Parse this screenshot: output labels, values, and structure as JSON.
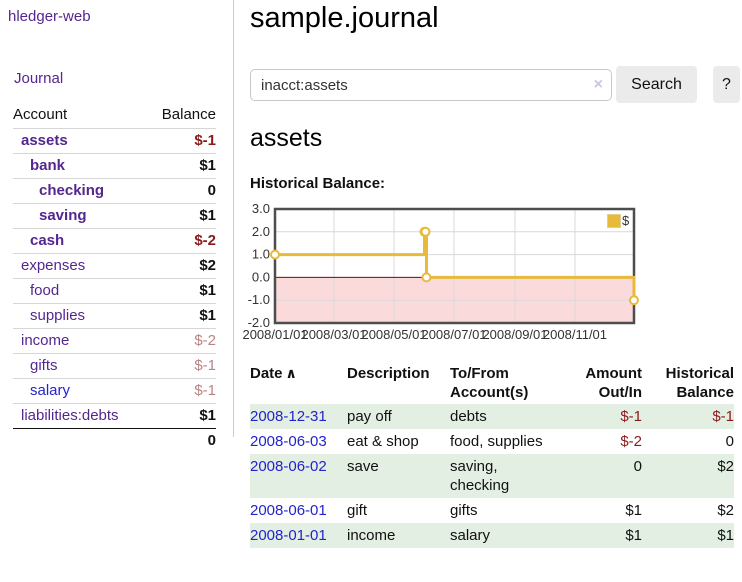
{
  "colors": {
    "purple": "#54278f",
    "blue": "#2323cc",
    "neg": "#8b1a1a",
    "negsoft": "#bb8383",
    "rowgreen": "#e3efe3",
    "gold": "#e8ba3a",
    "goldborder": "#e2cf8f",
    "pink": "#fadada",
    "grid": "#d9d9d9",
    "zeroline": "#8b0000",
    "chartborder": "#4d4d4d",
    "btnbg": "#ebebeb",
    "clear": "#cdc4e0"
  },
  "app": {
    "title": "hledger-web"
  },
  "sidebar": {
    "journal_label": "Journal",
    "account_col": "Account",
    "balance_col": "Balance",
    "accounts": [
      {
        "name": "assets",
        "balance": "$-1"
      },
      {
        "name": "bank",
        "balance": "$1"
      },
      {
        "name": "checking",
        "balance": "0"
      },
      {
        "name": "saving",
        "balance": "$1"
      },
      {
        "name": "cash",
        "balance": "$-2"
      },
      {
        "name": "expenses",
        "balance": "$2"
      },
      {
        "name": "food",
        "balance": "$1"
      },
      {
        "name": "supplies",
        "balance": "$1"
      },
      {
        "name": "income",
        "balance": "$-2"
      },
      {
        "name": "gifts",
        "balance": "$-1"
      },
      {
        "name": "salary",
        "balance": "$-1"
      },
      {
        "name": "liabilities:debts",
        "balance": "$1"
      }
    ],
    "total": "0"
  },
  "main": {
    "title": "sample.journal",
    "search": {
      "value": "inacct:assets",
      "clear_icon": "×",
      "button": "Search",
      "help": "?"
    },
    "heading": "assets",
    "chart_title": "Historical Balance:"
  },
  "chart_data": {
    "type": "line",
    "step": true,
    "title": "Historical Balance:",
    "series": [
      {
        "name": "$",
        "points": [
          [
            "2008/01/01",
            1
          ],
          [
            "2008/06/01",
            2
          ],
          [
            "2008/06/02",
            2
          ],
          [
            "2008/06/03",
            0
          ],
          [
            "2008/12/31",
            -1
          ]
        ]
      }
    ],
    "x_min": "2008/01/01",
    "x_max": "2008/12/31",
    "ylim": [
      -2,
      3
    ],
    "yticks": [
      3,
      2,
      1,
      0,
      -1,
      -2
    ],
    "xticks": [
      "2008/01/01",
      "2008/03/01",
      "2008/05/01",
      "2008/07/01",
      "2008/09/01",
      "2008/11/01"
    ],
    "legend": {
      "label": "$",
      "position": "top-right"
    },
    "negative_region_shaded": true,
    "grid": true
  },
  "register": {
    "headers": {
      "date": "Date",
      "sort_icon": "∧",
      "description": "Description",
      "accounts": "To/From Account(s)",
      "amount": "Amount Out/In",
      "balance": "Historical Balance"
    },
    "rows": [
      {
        "date": "2008-12-31",
        "description": "pay off",
        "accounts": "debts",
        "amount": "$-1",
        "balance": "$-1"
      },
      {
        "date": "2008-06-03",
        "description": "eat & shop",
        "accounts": "food, supplies",
        "amount": "$-2",
        "balance": "0"
      },
      {
        "date": "2008-06-02",
        "description": "save",
        "accounts": "saving, checking",
        "amount": "0",
        "balance": "$2"
      },
      {
        "date": "2008-06-01",
        "description": "gift",
        "accounts": "gifts",
        "amount": "$1",
        "balance": "$2"
      },
      {
        "date": "2008-01-01",
        "description": "income",
        "accounts": "salary",
        "amount": "$1",
        "balance": "$1"
      }
    ]
  }
}
